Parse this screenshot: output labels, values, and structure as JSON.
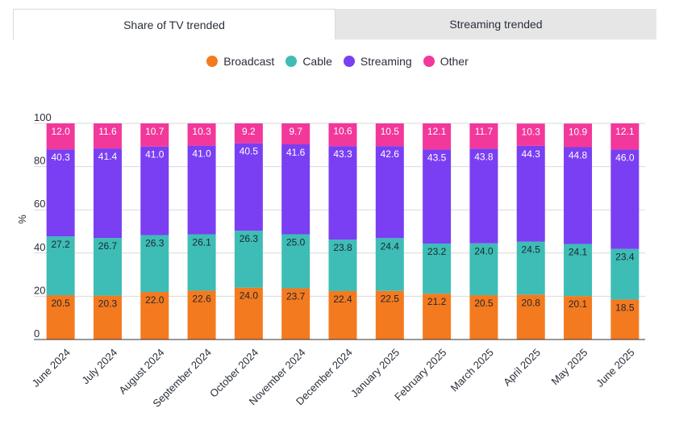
{
  "tabs": [
    {
      "label": "Share of TV trended",
      "active": true
    },
    {
      "label": "Streaming trended",
      "active": false
    }
  ],
  "chart_data": {
    "type": "bar",
    "stacked": true,
    "title": "",
    "xlabel": "",
    "ylabel": "%",
    "ylim": [
      0,
      100
    ],
    "yticks": [
      0,
      20,
      40,
      60,
      80,
      100
    ],
    "legend_placement": "top-center",
    "categories": [
      "June 2024",
      "July 2024",
      "August 2024",
      "September 2024",
      "October 2024",
      "November 2024",
      "December 2024",
      "January 2025",
      "February 2025",
      "March 2025",
      "April 2025",
      "May 2025",
      "June 2025"
    ],
    "series": [
      {
        "name": "Broadcast",
        "color": "#f47a1f",
        "label_color": "#1f2430",
        "values": [
          20.5,
          20.3,
          22.0,
          22.6,
          24.0,
          23.7,
          22.4,
          22.5,
          21.2,
          20.5,
          20.8,
          20.1,
          18.5
        ]
      },
      {
        "name": "Cable",
        "color": "#3dbdb5",
        "label_color": "#1f2430",
        "values": [
          27.2,
          26.7,
          26.3,
          26.1,
          26.3,
          25.0,
          23.8,
          24.4,
          23.2,
          24.0,
          24.5,
          24.1,
          23.4
        ]
      },
      {
        "name": "Streaming",
        "color": "#7a3ff2",
        "label_color": "#ffffff",
        "values": [
          40.3,
          41.4,
          41.0,
          41.0,
          40.5,
          41.6,
          43.3,
          42.6,
          43.5,
          43.8,
          44.3,
          44.8,
          46.0
        ]
      },
      {
        "name": "Other",
        "color": "#f2389a",
        "label_color": "#ffffff",
        "values": [
          12.0,
          11.6,
          10.7,
          10.3,
          9.2,
          9.7,
          10.6,
          10.5,
          12.1,
          11.7,
          10.3,
          10.9,
          12.1
        ]
      }
    ]
  }
}
